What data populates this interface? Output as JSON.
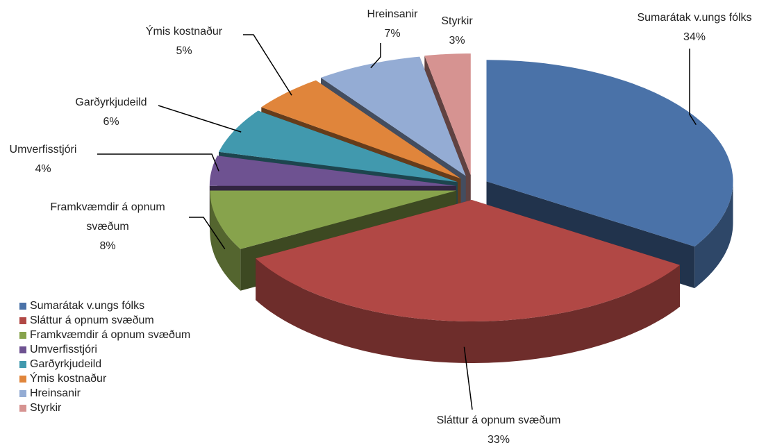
{
  "chart_data": {
    "type": "pie",
    "categories": [
      "Sumarátak v.ungs fólks",
      "Sláttur á opnum svæðum",
      "Framkvæmdir á opnum svæðum",
      "Umverfisstjóri",
      "Garðyrkjudeild",
      "Ýmis kostnaður",
      "Hreinsanir",
      "Styrkir"
    ],
    "values": [
      34,
      33,
      8,
      4,
      6,
      5,
      7,
      3
    ],
    "value_labels": [
      "34%",
      "33%",
      "8%",
      "4%",
      "6%",
      "5%",
      "7%",
      "3%"
    ],
    "colors": [
      "#4a72a8",
      "#b14845",
      "#87a34c",
      "#6e5291",
      "#4199ae",
      "#e0853b",
      "#94acd4",
      "#d69391"
    ],
    "legend": "bottom-left"
  }
}
